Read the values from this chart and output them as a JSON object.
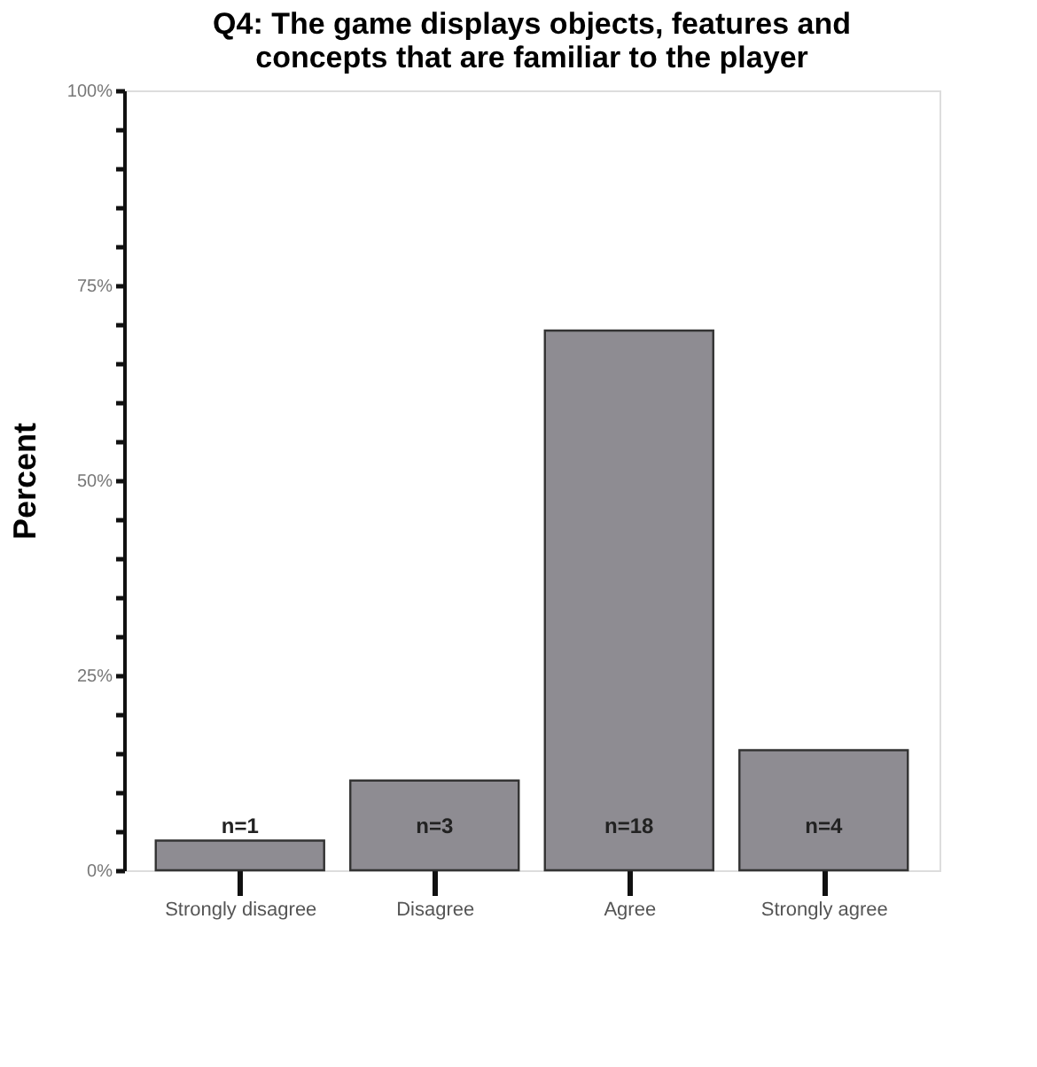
{
  "chart_data": {
    "type": "bar",
    "title": "Q4: The game displays objects, features and concepts that are familiar to the player",
    "ylabel": "Percent",
    "categories": [
      "Strongly disagree",
      "Disagree",
      "Agree",
      "Strongly agree"
    ],
    "values": [
      3.8,
      11.5,
      69.2,
      15.4
    ],
    "color": "#8e8c92",
    "annotations": [
      "n=1",
      "n=3",
      "n=18",
      "n=4"
    ],
    "ylim": [
      0,
      100
    ],
    "yticks": [
      {
        "value": 0,
        "label": "0%"
      },
      {
        "value": 5,
        "label": null
      },
      {
        "value": 10,
        "label": null
      },
      {
        "value": 15,
        "label": null
      },
      {
        "value": 20,
        "label": null
      },
      {
        "value": 25,
        "label": "25%"
      },
      {
        "value": 30,
        "label": null
      },
      {
        "value": 35,
        "label": null
      },
      {
        "value": 40,
        "label": null
      },
      {
        "value": 45,
        "label": null
      },
      {
        "value": 50,
        "label": "50%"
      },
      {
        "value": 55,
        "label": null
      },
      {
        "value": 60,
        "label": null
      },
      {
        "value": 65,
        "label": null
      },
      {
        "value": 70,
        "label": null
      },
      {
        "value": 75,
        "label": "75%"
      },
      {
        "value": 80,
        "label": null
      },
      {
        "value": 85,
        "label": null
      },
      {
        "value": 90,
        "label": null
      },
      {
        "value": 95,
        "label": null
      },
      {
        "value": 100,
        "label": "100%"
      }
    ],
    "grid": false
  }
}
